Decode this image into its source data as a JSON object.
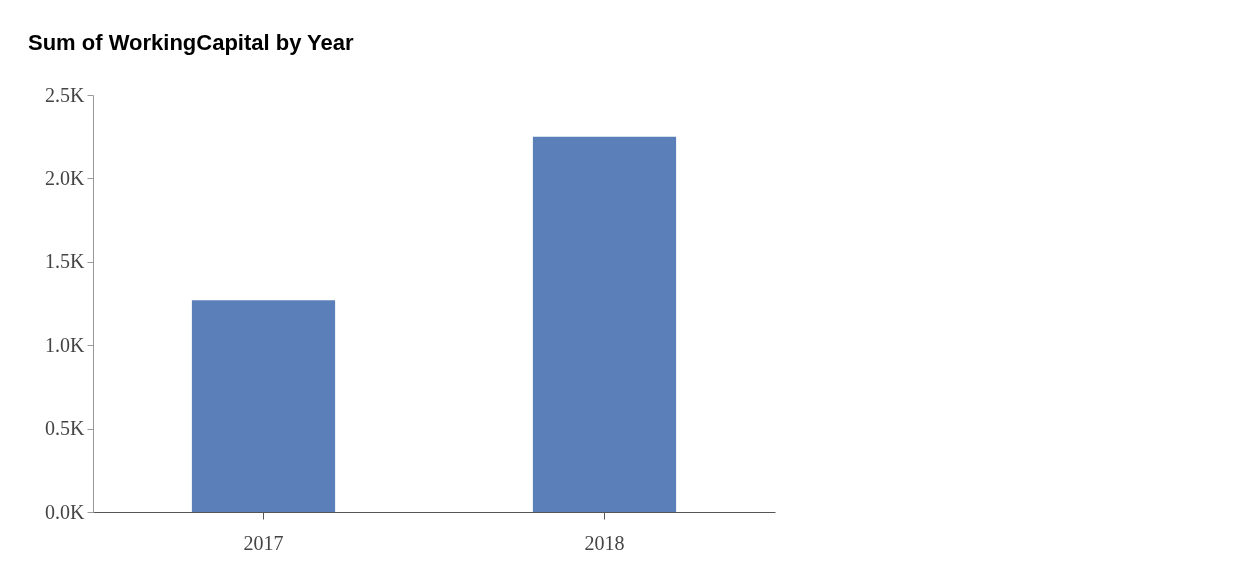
{
  "chart_data": {
    "type": "bar",
    "title": "Sum of WorkingCapital by Year",
    "categories": [
      "2017",
      "2018"
    ],
    "values": [
      1270,
      2250
    ],
    "color": "#5b7fb8",
    "ylim": [
      0,
      2500
    ],
    "yticks": [
      {
        "value": 0,
        "label": "0.0K"
      },
      {
        "value": 500,
        "label": "0.5K"
      },
      {
        "value": 1000,
        "label": "1.0K"
      },
      {
        "value": 1500,
        "label": "1.5K"
      },
      {
        "value": 2000,
        "label": "2.0K"
      },
      {
        "value": 2500,
        "label": "2.5K"
      }
    ],
    "grid": false
  }
}
